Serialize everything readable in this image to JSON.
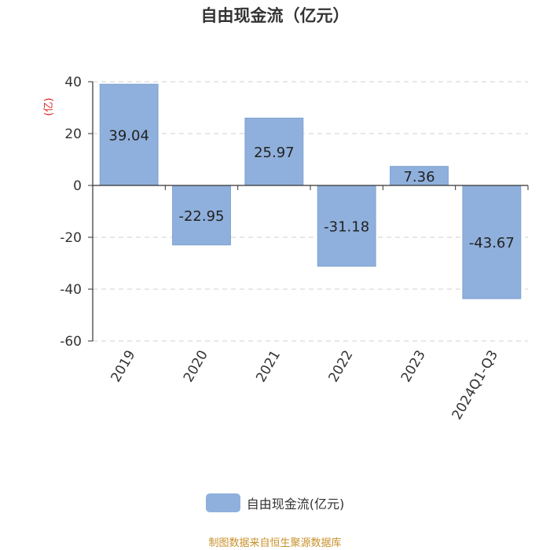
{
  "chart_data": {
    "type": "bar",
    "title": "自由现金流（亿元）",
    "ylabel": "(亿)",
    "xlabel": "",
    "categories": [
      "2019",
      "2020",
      "2021",
      "2022",
      "2023",
      "2024Q1-Q3"
    ],
    "series": [
      {
        "name": "自由现金流(亿元)",
        "values": [
          39.04,
          -22.95,
          25.97,
          -31.18,
          7.36,
          -43.67
        ]
      }
    ],
    "yticks": [
      40,
      20,
      0,
      -20,
      -40,
      -60
    ],
    "ylim": [
      -60,
      40
    ],
    "grid": true,
    "legend_position": "bottom-center",
    "colors": {
      "bar": "#8fb0dc",
      "bar_stroke": "#7fa2d2",
      "ylabel": "#e02020"
    }
  },
  "legend": {
    "label": "自由现金流(亿元)"
  },
  "source": "制图数据来自恒生聚源数据库"
}
